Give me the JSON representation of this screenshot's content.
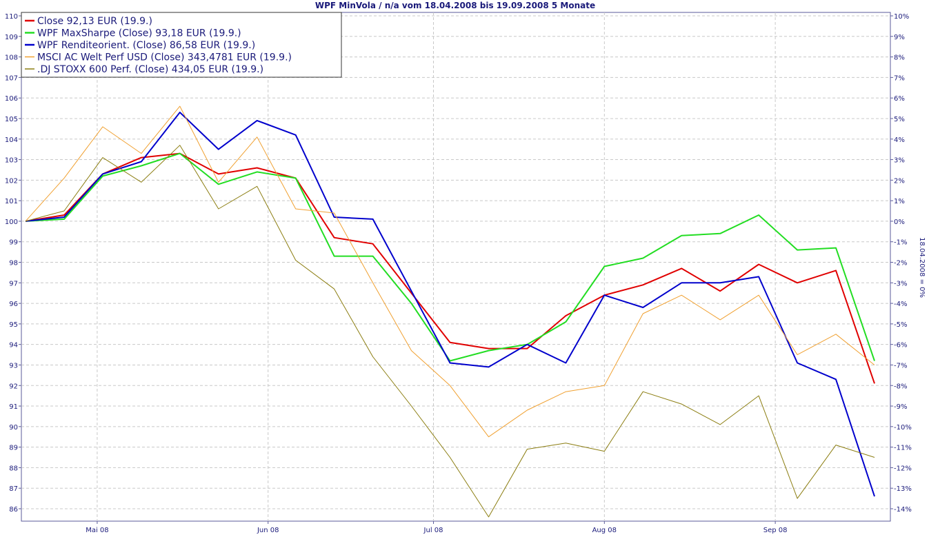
{
  "chart_data": {
    "type": "line",
    "title": "WPF MinVola / n/a vom 18.04.2008 bis 19.09.2008 5 Monate",
    "right_axis_label": "18.04.2008 = 0%",
    "x": [
      "2008-04-18",
      "2008-04-25",
      "2008-05-02",
      "2008-05-09",
      "2008-05-16",
      "2008-05-23",
      "2008-05-30",
      "2008-06-06",
      "2008-06-13",
      "2008-06-20",
      "2008-06-27",
      "2008-07-04",
      "2008-07-11",
      "2008-07-18",
      "2008-07-25",
      "2008-08-01",
      "2008-08-08",
      "2008-08-15",
      "2008-08-22",
      "2008-08-29",
      "2008-09-05",
      "2008-09-12",
      "2008-09-19"
    ],
    "x_tick_labels": [
      {
        "date": "2008-05-01",
        "label": "Mai 08"
      },
      {
        "date": "2008-06-01",
        "label": "Jun 08"
      },
      {
        "date": "2008-07-01",
        "label": "Jul 08"
      },
      {
        "date": "2008-08-01",
        "label": "Aug 08"
      },
      {
        "date": "2008-09-01",
        "label": "Sep 08"
      }
    ],
    "x_range": [
      "2008-04-18",
      "2008-09-19"
    ],
    "ylim": [
      86,
      110
    ],
    "y_ticks": [
      86,
      87,
      88,
      89,
      90,
      91,
      92,
      93,
      94,
      95,
      96,
      97,
      98,
      99,
      100,
      101,
      102,
      103,
      104,
      105,
      106,
      107,
      108,
      109,
      110
    ],
    "y2_ticks": [
      "10%",
      "9%",
      "8%",
      "7%",
      "6%",
      "5%",
      "4%",
      "3%",
      "2%",
      "1%",
      "0%",
      "-1%",
      "-2%",
      "-3%",
      "-4%",
      "-5%",
      "-6%",
      "-7%",
      "-8%",
      "-9%",
      "-10%",
      "-11%",
      "-12%",
      "-13%",
      "-14%"
    ],
    "grid": true,
    "legend_position": "top-left",
    "series": [
      {
        "name": "Close 92,13 EUR (19.9.)",
        "color": "#e00000",
        "width": 2,
        "values": [
          100.0,
          100.3,
          102.3,
          103.1,
          103.3,
          102.3,
          102.6,
          102.1,
          99.2,
          98.9,
          96.5,
          94.1,
          93.8,
          93.8,
          95.4,
          96.4,
          96.9,
          97.7,
          96.6,
          97.9,
          97.0,
          97.6,
          92.1
        ]
      },
      {
        "name": "WPF MaxSharpe (Close) 93,18 EUR (19.9.)",
        "color": "#22dd22",
        "width": 2,
        "values": [
          100.0,
          100.1,
          102.2,
          102.7,
          103.3,
          101.8,
          102.4,
          102.1,
          98.3,
          98.3,
          96.0,
          93.2,
          93.7,
          94.0,
          95.1,
          97.8,
          98.2,
          99.3,
          99.4,
          100.3,
          98.6,
          98.7,
          93.2
        ]
      },
      {
        "name": "WPF Renditeorient. (Close) 86,58 EUR (19.9.)",
        "color": "#0000cc",
        "width": 2,
        "values": [
          100.0,
          100.2,
          102.3,
          102.9,
          105.3,
          103.5,
          104.9,
          104.2,
          100.2,
          100.1,
          96.6,
          93.1,
          92.9,
          94.0,
          93.1,
          96.4,
          95.8,
          97.0,
          97.0,
          97.3,
          93.1,
          92.3,
          86.6
        ]
      },
      {
        "name": "MSCI AC Welt Perf USD (Close) 343,4781 EUR (19.9.)",
        "color": "#f0a030",
        "width": 1,
        "values": [
          100.0,
          102.1,
          104.6,
          103.3,
          105.6,
          101.9,
          104.1,
          100.6,
          100.4,
          97.0,
          93.7,
          92.0,
          89.5,
          90.8,
          91.7,
          92.0,
          95.5,
          96.4,
          95.2,
          96.4,
          93.5,
          94.5,
          93.0
        ]
      },
      {
        "name": ".DJ STOXX 600 Perf. (Close) 434,05 EUR (19.9.)",
        "color": "#8b7d10",
        "width": 1,
        "values": [
          100.0,
          100.5,
          103.1,
          101.9,
          103.7,
          100.6,
          101.7,
          98.1,
          96.7,
          93.4,
          91.0,
          88.5,
          85.6,
          88.9,
          89.2,
          88.8,
          91.7,
          91.1,
          90.1,
          91.5,
          86.5,
          89.1,
          88.5
        ]
      }
    ]
  }
}
